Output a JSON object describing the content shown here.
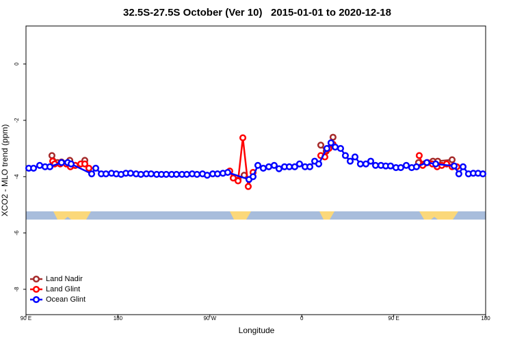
{
  "chart_data": {
    "type": "line",
    "title": "32.5S-27.5S October (Ver 10)   2015-01-01 to 2020-12-18",
    "x_label": "Longitude",
    "y_label": "XCO2 - MLO trend (ppm)",
    "xlim": [
      90,
      540
    ],
    "ylim": [
      -8.9,
      1.35
    ],
    "xticks": [
      {
        "value": 90,
        "label": "90 E"
      },
      180,
      {
        "value": 270,
        "label": "90 W"
      },
      {
        "value": 360,
        "label": "0"
      },
      {
        "value": 450,
        "label": "90 E"
      },
      {
        "value": 540,
        "label": "180"
      }
    ],
    "yticks": [
      0,
      -2,
      -4,
      -6,
      -8
    ],
    "legend": "bottom-left",
    "series": [
      {
        "name": "Land Nadir",
        "color": "#a52a2a",
        "x": [
          115.4,
          120.8,
          124.8,
          132.9,
          138.2,
          147.6,
          null,
          297.6,
          303.6,
          null,
          378.6,
          383.9,
          390.6,
          null,
          474.3,
          479.7,
          488.4,
          493.1,
          507.2
        ],
        "values": [
          -3.25,
          -3.5,
          -3.48,
          -3.42,
          -3.6,
          -3.42,
          null,
          -4.12,
          -3.95,
          null,
          -2.88,
          -3.1,
          -2.6,
          null,
          -3.5,
          -3.55,
          -3.45,
          -3.45,
          -3.4
        ]
      },
      {
        "name": "Land Glint",
        "color": "#ff0000",
        "x": [
          116.1,
          118.1,
          123.5,
          129.5,
          133.5,
          138.2,
          143.6,
          147.6,
          151.6,
          null,
          289.5,
          292.9,
          297.6,
          302.3,
          307.6,
          312.3,
          null,
          378.6,
          382.6,
          386.6,
          390.6,
          null,
          475,
          478.4,
          483.1,
          487.8,
          492.5,
          497.1,
          501.8,
          507.2,
          511.8
        ],
        "values": [
          -3.45,
          -3.55,
          -3.55,
          -3.55,
          -3.65,
          -3.6,
          -3.55,
          -3.55,
          -3.7,
          null,
          -3.8,
          -4.05,
          -4.15,
          -2.62,
          -4.35,
          -3.85,
          null,
          -3.25,
          -3.3,
          -3.0,
          -2.85,
          null,
          -3.25,
          -3.6,
          -3.5,
          -3.55,
          -3.65,
          -3.6,
          -3.55,
          -3.65,
          -3.65
        ]
      },
      {
        "name": "Ocean Glint",
        "color": "#0000ff",
        "x": [
          92.7,
          97.4,
          103.4,
          108.7,
          113.4,
          124.8,
          130.8,
          134.2,
          154.3,
          158.3,
          163.7,
          168.3,
          173.7,
          178.4,
          183.1,
          187.8,
          192.4,
          197.8,
          202.5,
          207.8,
          212.5,
          217.9,
          222.6,
          227.3,
          232.6,
          237.3,
          242.7,
          247.4,
          252.7,
          257.4,
          262.8,
          267.4,
          272.8,
          277.5,
          282.8,
          287.5,
          308.3,
          312.3,
          317,
          322.3,
          327.7,
          333,
          337.7,
          343.1,
          347.8,
          353.1,
          357.8,
          363.2,
          367.9,
          372.6,
          376.6,
          384.6,
          388.6,
          392.7,
          398,
          402.7,
          407.4,
          412.1,
          417.4,
          422.8,
          427.5,
          432.2,
          437.5,
          442.2,
          446.9,
          452.2,
          456.9,
          462.3,
          467.6,
          472.3,
          482.4,
          491.1,
          509.2,
          513.8,
          517.9,
          523.2,
          527.9,
          532.6,
          537.3
        ],
        "values": [
          -3.7,
          -3.7,
          -3.6,
          -3.65,
          -3.65,
          -3.5,
          -3.5,
          -3.55,
          -3.9,
          -3.7,
          -3.9,
          -3.9,
          -3.88,
          -3.9,
          -3.92,
          -3.88,
          -3.88,
          -3.9,
          -3.92,
          -3.9,
          -3.9,
          -3.92,
          -3.92,
          -3.92,
          -3.92,
          -3.92,
          -3.92,
          -3.92,
          -3.9,
          -3.92,
          -3.9,
          -3.95,
          -3.9,
          -3.9,
          -3.88,
          -3.85,
          -4.1,
          -4.0,
          -3.6,
          -3.7,
          -3.65,
          -3.6,
          -3.72,
          -3.65,
          -3.65,
          -3.65,
          -3.55,
          -3.65,
          -3.65,
          -3.45,
          -3.55,
          -3.0,
          -2.8,
          -2.95,
          -3.0,
          -3.25,
          -3.45,
          -3.3,
          -3.55,
          -3.55,
          -3.45,
          -3.6,
          -3.6,
          -3.62,
          -3.62,
          -3.68,
          -3.68,
          -3.6,
          -3.68,
          -3.65,
          -3.5,
          -3.55,
          -3.62,
          -3.9,
          -3.65,
          -3.9,
          -3.88,
          -3.88,
          -3.9
        ]
      }
    ]
  }
}
